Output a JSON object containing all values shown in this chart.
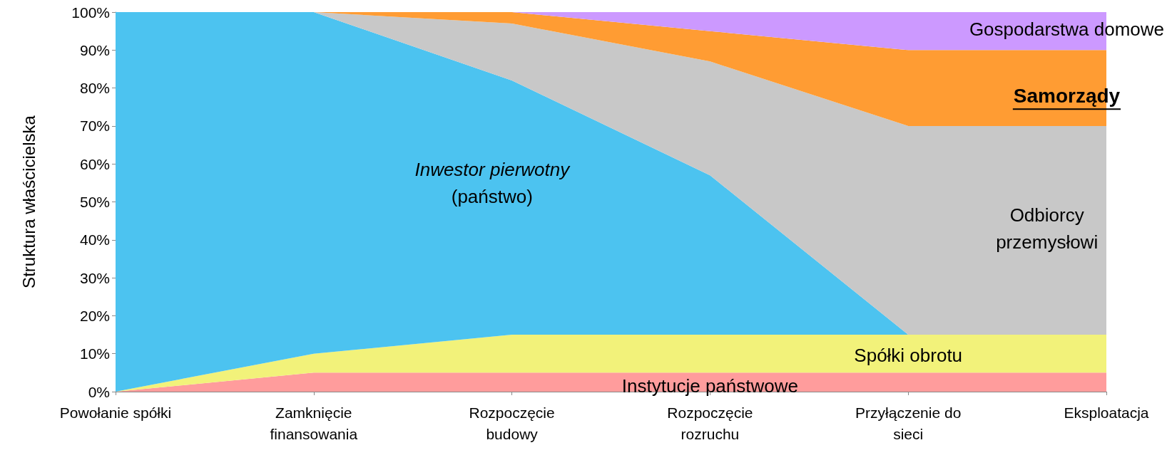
{
  "chart_data": {
    "type": "area",
    "stacked": true,
    "ylabel": "Struktura właścicielska",
    "categories": [
      "Powołanie spółki",
      "Zamknięcie\nfinansowania",
      "Rozpoczęcie\nbudowy",
      "Rozpoczęcie\nrozruchu",
      "Przyłączenie do\nsieci",
      "Eksploatacja"
    ],
    "series": [
      {
        "name": "Instytucje państwowe",
        "color": "#ff9c9c",
        "values": [
          0,
          5,
          5,
          5,
          5,
          5
        ]
      },
      {
        "name": "Spółki obrotu",
        "color": "#f2f27a",
        "values": [
          0,
          5,
          10,
          10,
          10,
          10
        ]
      },
      {
        "name": "Inwestor pierwotny\n(państwo)",
        "color": "#4cc3f0",
        "values": [
          100,
          90,
          67,
          42,
          0,
          0
        ]
      },
      {
        "name": "Odbiorcy\nprzemysłowi",
        "color": "#c8c8c8",
        "values": [
          0,
          0,
          15,
          30,
          55,
          55
        ]
      },
      {
        "name": "Samorządy",
        "color": "#ff9c33",
        "values": [
          0,
          0,
          3,
          8,
          20,
          20
        ]
      },
      {
        "name": "Gospodarstwa domowe",
        "color": "#cc99ff",
        "values": [
          0,
          0,
          0,
          5,
          10,
          10
        ]
      }
    ],
    "ylim": [
      0,
      100
    ],
    "yticks": [
      {
        "value": 0,
        "label": "0%"
      },
      {
        "value": 10,
        "label": "10%"
      },
      {
        "value": 20,
        "label": "20%"
      },
      {
        "value": 30,
        "label": "30%"
      },
      {
        "value": 40,
        "label": "40%"
      },
      {
        "value": 50,
        "label": "50%"
      },
      {
        "value": 60,
        "label": "60%"
      },
      {
        "value": 70,
        "label": "70%"
      },
      {
        "value": 80,
        "label": "80%"
      },
      {
        "value": 90,
        "label": "90%"
      },
      {
        "value": 100,
        "label": "100%"
      }
    ],
    "grid": false,
    "legend": false
  }
}
